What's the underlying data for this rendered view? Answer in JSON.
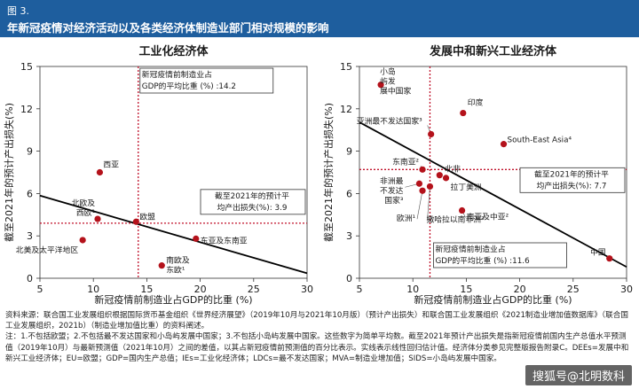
{
  "header": {
    "label": "图 3.",
    "title": "年新冠疫情对经济活动以及各类经济体制造业部门相对规模的影响"
  },
  "chart_data": [
    {
      "type": "scatter",
      "title": "工业化经济体",
      "xlabel": "新冠疫情前制造业占GDP的比重 (%)",
      "ylabel": "截至2021年的预计产出损失(%)",
      "xlim": [
        5,
        30
      ],
      "ylim": [
        0,
        15
      ],
      "xticks": [
        5,
        10,
        15,
        20,
        25,
        30
      ],
      "yticks": [
        0,
        3,
        6,
        9,
        12,
        15
      ],
      "points": [
        {
          "label": "西亚",
          "x": 10.6,
          "y": 7.5
        },
        {
          "label": "北欧及西欧¹",
          "x": 10.4,
          "y": 4.2
        },
        {
          "label": "欧盟",
          "x": 14.0,
          "y": 4.0
        },
        {
          "label": "北美及太平洋地区",
          "x": 9.0,
          "y": 2.7
        },
        {
          "label": "东亚及东南亚",
          "x": 19.6,
          "y": 2.8
        },
        {
          "label": "南欧及东欧¹",
          "x": 16.4,
          "y": 0.9
        }
      ],
      "trendline": [
        [
          5,
          5.85
        ],
        [
          30,
          0.35
        ]
      ],
      "vline": {
        "x": 14.2,
        "label": "新冠疫情前制造业占GDP的平均比重 (%) :14.2"
      },
      "hline": {
        "y": 3.9,
        "label": "截至2021年的预计平均产出损失(%): 3.9"
      }
    },
    {
      "type": "scatter",
      "title": "发展中和新兴工业经济体",
      "xlabel": "新冠疫情前制造业占GDP的比重 (%)",
      "ylabel": "截至2021年的预计产出损失(%)",
      "xlim": [
        5,
        30
      ],
      "ylim": [
        0,
        15
      ],
      "xticks": [
        5,
        10,
        15,
        20,
        25,
        30
      ],
      "yticks": [
        0,
        3,
        6,
        9,
        12,
        15
      ],
      "points": [
        {
          "label": "小岛屿发展中国家",
          "x": 7.0,
          "y": 13.7
        },
        {
          "label": "亚洲最不发达国家³",
          "x": 11.7,
          "y": 10.2
        },
        {
          "label": "印度",
          "x": 14.7,
          "y": 11.7
        },
        {
          "label": "South-East Asia⁴",
          "x": 18.5,
          "y": 9.5
        },
        {
          "label": "北非",
          "x": 12.5,
          "y": 7.3
        },
        {
          "label": "东南亚²",
          "x": 10.9,
          "y": 7.7
        },
        {
          "label": "拉丁美洲",
          "x": 13.1,
          "y": 7.1
        },
        {
          "label": "非洲最不发达国家³",
          "x": 10.6,
          "y": 6.7
        },
        {
          "label": "欧洲¹",
          "x": 10.9,
          "y": 6.2
        },
        {
          "label": "撒哈拉以南非洲²",
          "x": 11.6,
          "y": 6.5
        },
        {
          "label": "南亚及中亚²",
          "x": 14.6,
          "y": 4.8
        },
        {
          "label": "中国",
          "x": 28.4,
          "y": 1.4
        }
      ],
      "trendline": [
        [
          5,
          11.05
        ],
        [
          30,
          0.8
        ]
      ],
      "vline": {
        "x": 11.6,
        "label": "新冠疫情前制造业占GDP的平均比重 (%) :11.6"
      },
      "hline": {
        "y": 7.7,
        "label": "截至2021年的预计平均产出损失(%): 7.7"
      }
    }
  ],
  "footer": {
    "source": "资料来源：联合国工业发展组织根据国际货币基金组织《世界经济展望》（2019年10月与2021年10月版）（预计产出损失）和联合国工业发展组织《2021制造业增加值数据库》（联合国工业发展组织，2021b）（制造业增加值比重）的资料阐述。",
    "notes": "注：1.不包括欧盟；2.不包括最不发达国家和小岛屿发展中国家；3.不包括小岛屿发展中国家。这些数字为简单平均数。截至2021年预计产出损失是指新冠疫情前国内生产总值水平预测值（2019年10月）与最新预测值（2021年10月）之间的差值，以其占新冠疫情前预测值的百分比表示。实线表示线性回归估计值。经济体分类参见完整版报告附录C。DEEs=发展中和新兴工业经济体；EU=欧盟；GDP=国内生产总值；IEs=工业化经济体；LDCs=最不发达国家；MVA=制造业增加值；SIDS=小岛屿发展中国家。",
    "watermark": "搜狐号@北明数科"
  },
  "colors": {
    "header_bg": "#1e5e9e",
    "point": "#b4121b",
    "ref_line": "#c0102a",
    "trend": "#000000"
  }
}
